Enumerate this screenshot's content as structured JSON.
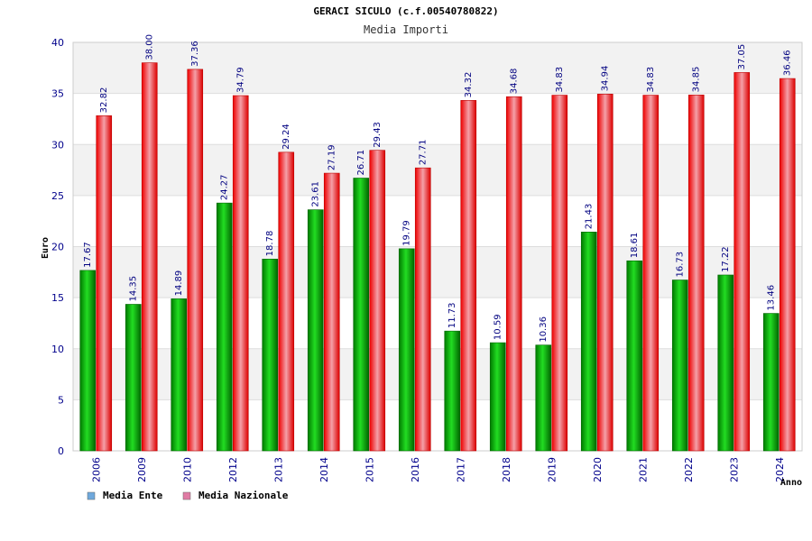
{
  "chart_data": {
    "type": "bar",
    "title": "GERACI SICULO (c.f.00540780822)",
    "subtitle": "Media Importi",
    "xlabel": "Anno",
    "ylabel": "Euro",
    "ylim": [
      0,
      40
    ],
    "yticks": [
      0,
      5,
      10,
      15,
      20,
      25,
      30,
      35,
      40
    ],
    "grid": true,
    "legend_position": "bottom-left",
    "categories": [
      "2006",
      "2009",
      "2010",
      "2012",
      "2013",
      "2014",
      "2015",
      "2016",
      "2017",
      "2018",
      "2019",
      "2020",
      "2021",
      "2022",
      "2023",
      "2024"
    ],
    "series": [
      {
        "name": "Media Ente",
        "color": "#00aa00",
        "legend_color": "#6fa8dc",
        "values": [
          17.67,
          14.35,
          14.89,
          24.27,
          18.78,
          23.61,
          26.71,
          19.79,
          11.73,
          10.59,
          10.36,
          21.43,
          18.61,
          16.73,
          17.22,
          13.46
        ],
        "labels": [
          "17.67",
          "14.35",
          "14.89",
          "24.27",
          "18.78",
          "23.61",
          "26.71",
          "19.79",
          "11.73",
          "10.59",
          "10.36",
          "21.43",
          "18.61",
          "16.73",
          "17.22",
          "13.46"
        ]
      },
      {
        "name": "Media Nazionale",
        "color": "#ee1111",
        "legend_color": "#e07ba4",
        "values": [
          32.82,
          38.0,
          37.36,
          34.79,
          29.24,
          27.19,
          29.43,
          27.71,
          34.32,
          34.68,
          34.83,
          34.94,
          34.83,
          34.85,
          37.05,
          36.46
        ],
        "labels": [
          "32.82",
          "38.00",
          "37.36",
          "34.79",
          "29.24",
          "27.19",
          "29.43",
          "27.71",
          "34.32",
          "34.68",
          "34.83",
          "34.94",
          "34.83",
          "34.85",
          "37.05",
          "36.46"
        ]
      }
    ]
  }
}
